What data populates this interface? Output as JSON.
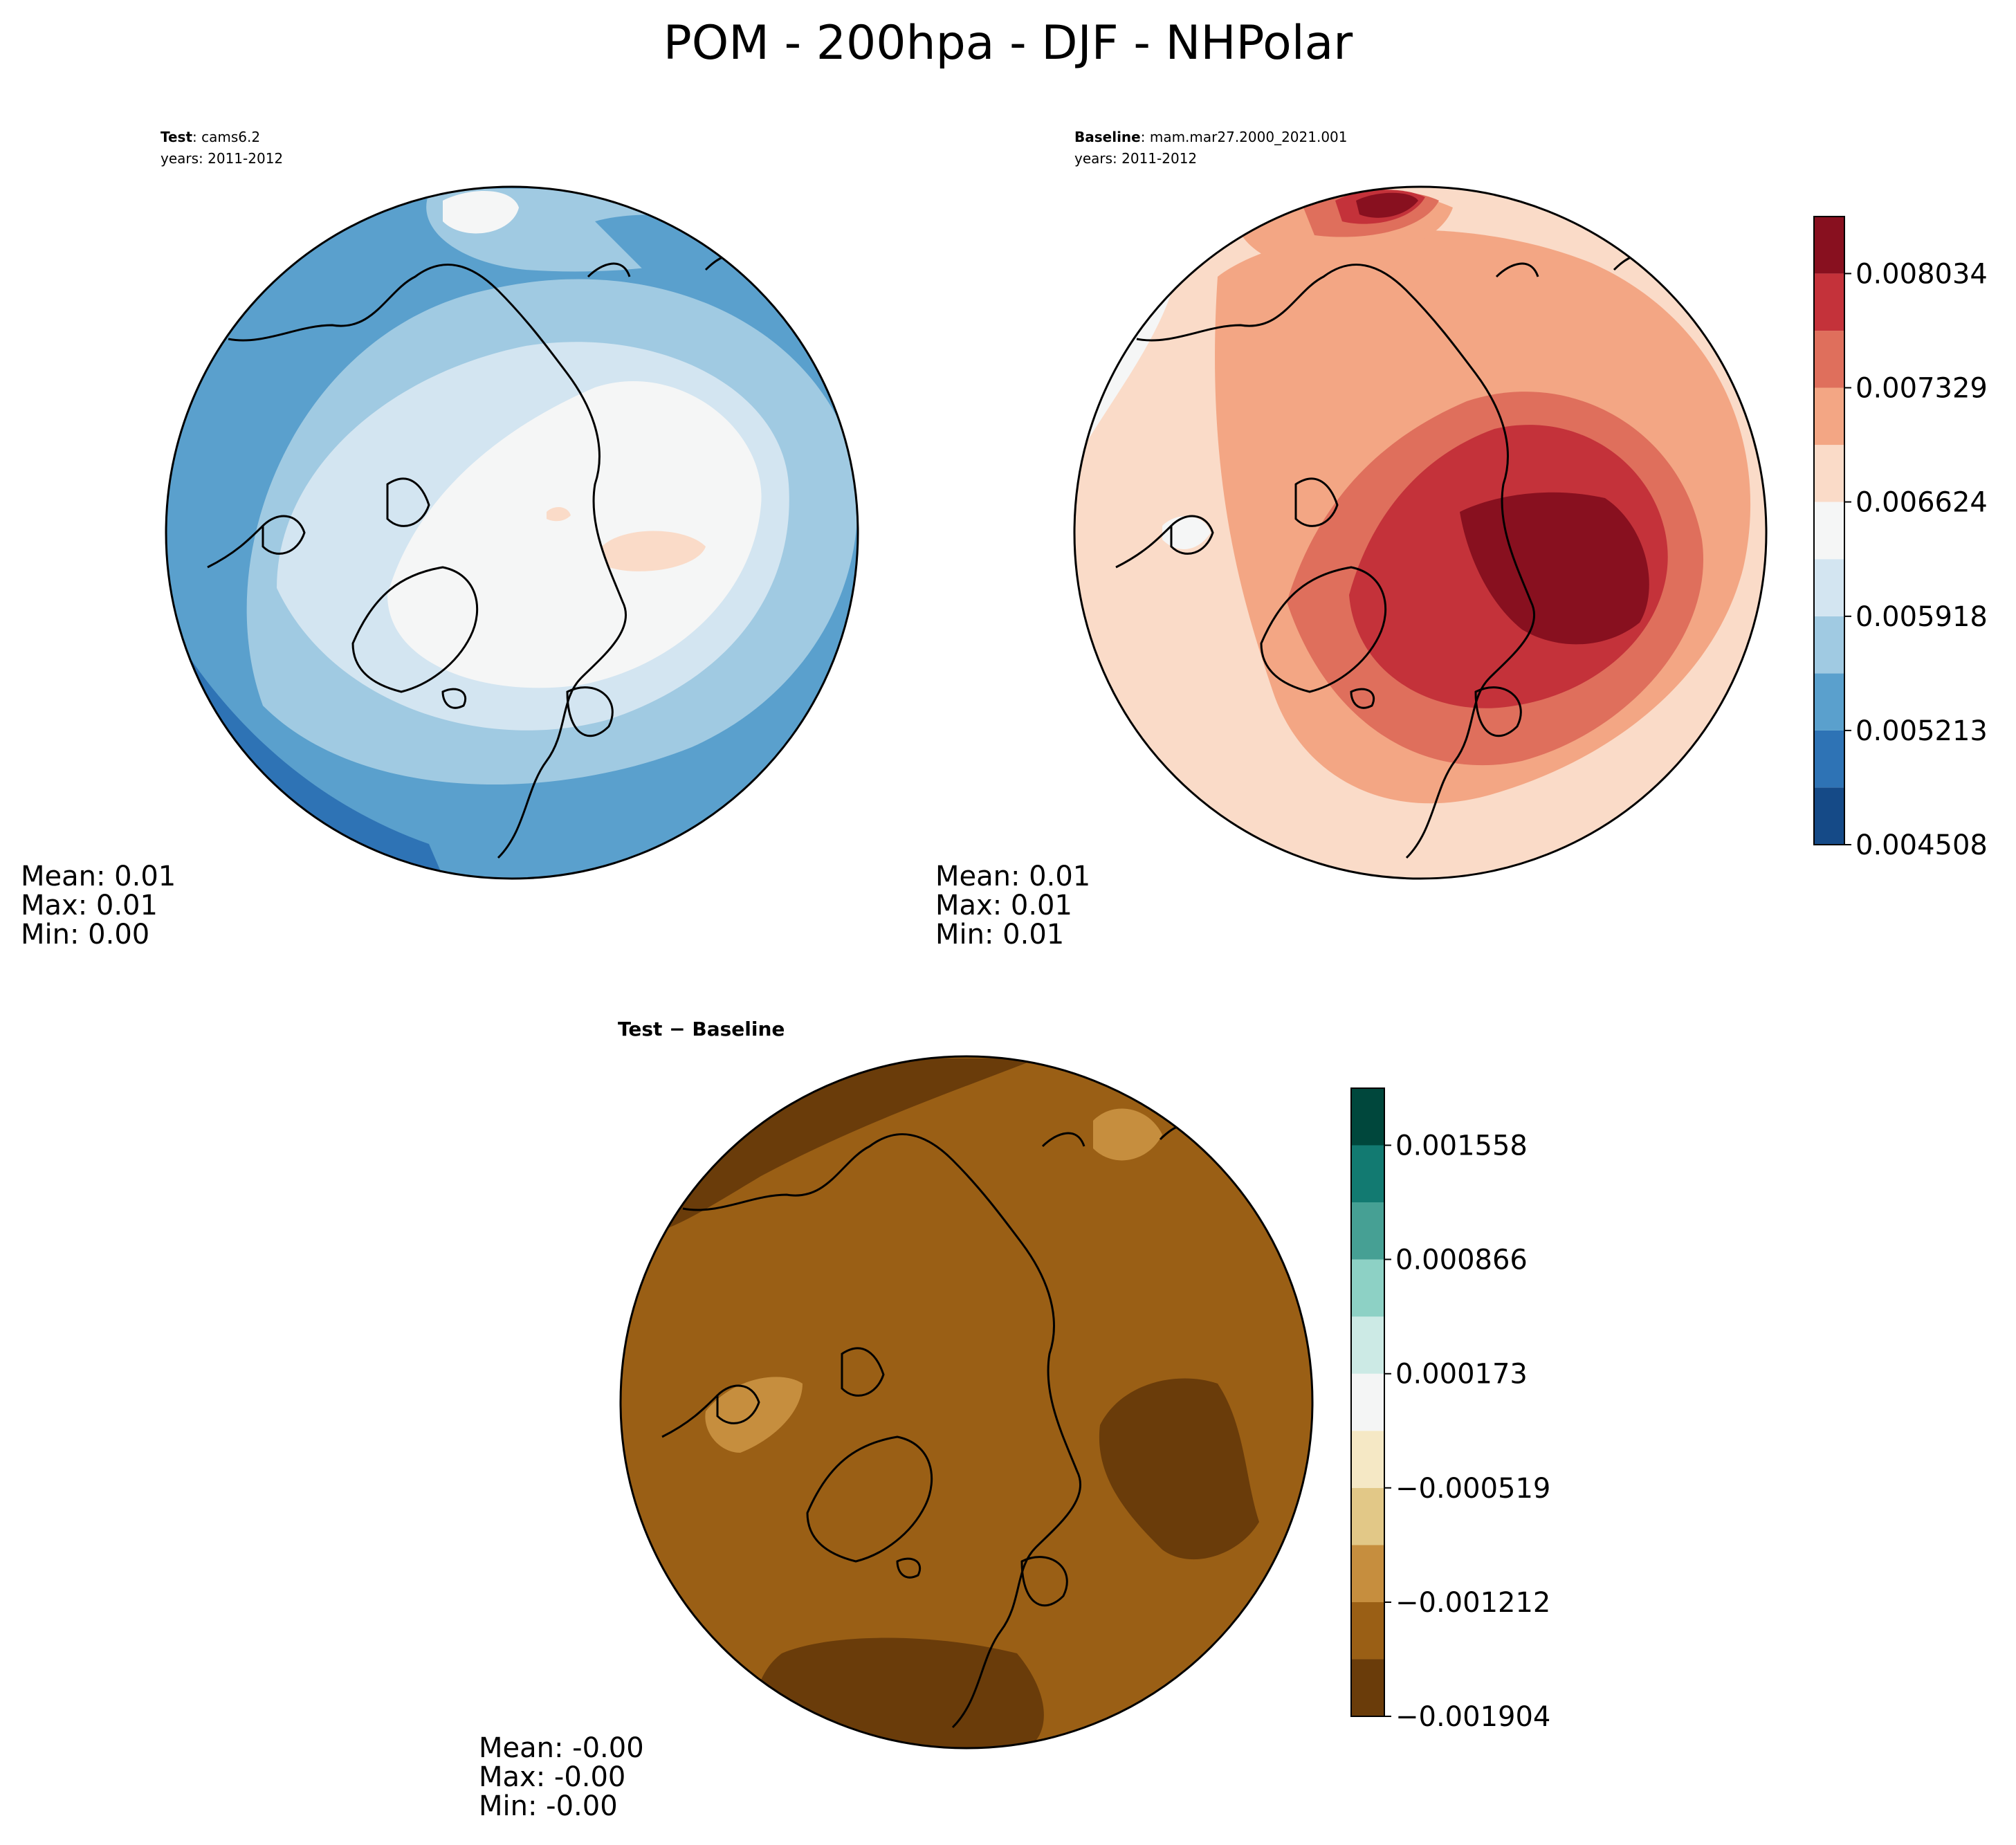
{
  "title": "POM - 200hpa - DJF - NHPolar",
  "panels": {
    "test": {
      "label_bold": "Test",
      "label_rest": ": cams6.2",
      "years": "years: 2011-2012",
      "mean": "Mean:  0.01",
      "max": "Max:  0.01",
      "min": "Min:  0.00",
      "base_color": "#9ecae1"
    },
    "baseline": {
      "label_bold": "Baseline",
      "label_rest": ": mam.mar27.2000_2021.001",
      "years": "years: 2011-2012",
      "mean": "Mean:  0.01",
      "max": "Max:  0.01",
      "min": "Min:  0.01",
      "base_color": "#f4a582"
    },
    "diff": {
      "label": "Test − Baseline",
      "mean": "Mean: -0.00",
      "max": "Max: -0.00",
      "min": "Min: -0.00",
      "base_color": "#9a5f15"
    }
  },
  "chart_data": [
    {
      "type": "colorbar",
      "name": "test-baseline-shared-colorbar",
      "colormap": "RdBu_r",
      "levels": [
        0.004508,
        0.004861,
        0.005213,
        0.005566,
        0.005918,
        0.006271,
        0.006624,
        0.006976,
        0.007329,
        0.007681,
        0.008034,
        0.008386
      ],
      "tick_labels": [
        "0.008034",
        "0.007329",
        "0.006624",
        "0.005918",
        "0.005213",
        "0.004508"
      ],
      "tick_values": [
        0.008034,
        0.007329,
        0.006624,
        0.005918,
        0.005213,
        0.004508
      ],
      "colors": [
        "#154a87",
        "#2e73b5",
        "#5aa0cd",
        "#a0cae2",
        "#d3e5f1",
        "#f5f6f6",
        "#fadbc8",
        "#f3a684",
        "#df6f5c",
        "#c4323a",
        "#88101f"
      ]
    },
    {
      "type": "colorbar",
      "name": "diff-colorbar",
      "colormap": "BrBG",
      "levels": [
        -0.001904,
        -0.001558,
        -0.001212,
        -0.000866,
        -0.000519,
        -0.000173,
        0.000173,
        0.000519,
        0.000866,
        0.001212,
        0.001558,
        0.001904
      ],
      "tick_labels": [
        "0.001558",
        "0.000866",
        "0.000173",
        "−0.000519",
        "−0.001212",
        "−0.001904"
      ],
      "tick_values": [
        0.001558,
        0.000866,
        0.000173,
        -0.000519,
        -0.001212,
        -0.001904
      ],
      "colors": [
        "#6a3c0a",
        "#9a5f15",
        "#c68e3e",
        "#e2c887",
        "#f5e8c5",
        "#f4f5f5",
        "#cceae5",
        "#8dd1c5",
        "#46a094",
        "#127a71",
        "#00473c"
      ]
    }
  ]
}
